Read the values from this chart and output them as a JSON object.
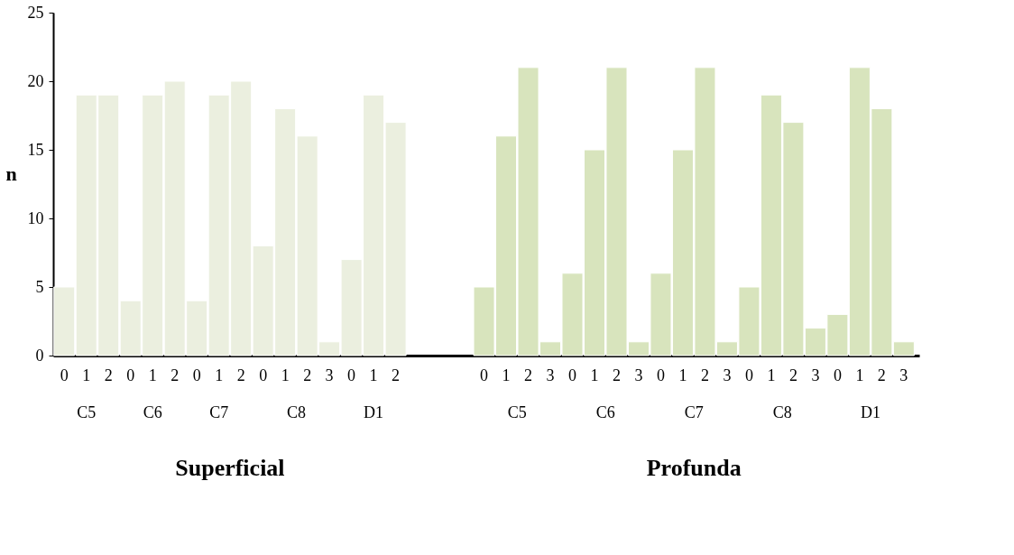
{
  "chart_data": {
    "type": "bar",
    "ylabel": "n",
    "categories": [
      "0",
      "1",
      "2",
      "0",
      "1",
      "2",
      "0",
      "1",
      "2",
      "0",
      "1",
      "2",
      "3",
      "0",
      "1",
      "2",
      null,
      null,
      null,
      "0",
      "1",
      "2",
      "3",
      "0",
      "1",
      "2",
      "3",
      "0",
      "1",
      "2",
      "3",
      "0",
      "1",
      "2",
      "3",
      "0",
      "1",
      "2",
      "3"
    ],
    "values": [
      5,
      19,
      19,
      4,
      19,
      20,
      4,
      19,
      20,
      8,
      18,
      16,
      1,
      7,
      19,
      17,
      null,
      null,
      null,
      5,
      16,
      21,
      1,
      6,
      15,
      21,
      1,
      6,
      15,
      21,
      1,
      5,
      19,
      17,
      2,
      3,
      21,
      18,
      1
    ],
    "colors": [
      "#ebefdf",
      "#ebefdf",
      "#ebefdf",
      "#ebefdf",
      "#ebefdf",
      "#ebefdf",
      "#ebefdf",
      "#ebefdf",
      "#ebefdf",
      "#ebefdf",
      "#ebefdf",
      "#ebefdf",
      "#ebefdf",
      "#ebefdf",
      "#ebefdf",
      "#ebefdf",
      null,
      null,
      null,
      "#d8e4bd",
      "#d8e4bd",
      "#d8e4bd",
      "#d8e4bd",
      "#d8e4bd",
      "#d8e4bd",
      "#d8e4bd",
      "#d8e4bd",
      "#d8e4bd",
      "#d8e4bd",
      "#d8e4bd",
      "#d8e4bd",
      "#d8e4bd",
      "#d8e4bd",
      "#d8e4bd",
      "#d8e4bd",
      "#d8e4bd",
      "#d8e4bd",
      "#d8e4bd",
      "#d8e4bd"
    ],
    "ylim": [
      0,
      25
    ],
    "yticks": [
      0,
      5,
      10,
      15,
      20,
      25
    ],
    "grid": false,
    "annotations": [
      "C5",
      "C6",
      "C7",
      "C8",
      "D1",
      "C5",
      "C6",
      "C7",
      "C8",
      "D1",
      "Superficial",
      "Profunda"
    ]
  }
}
